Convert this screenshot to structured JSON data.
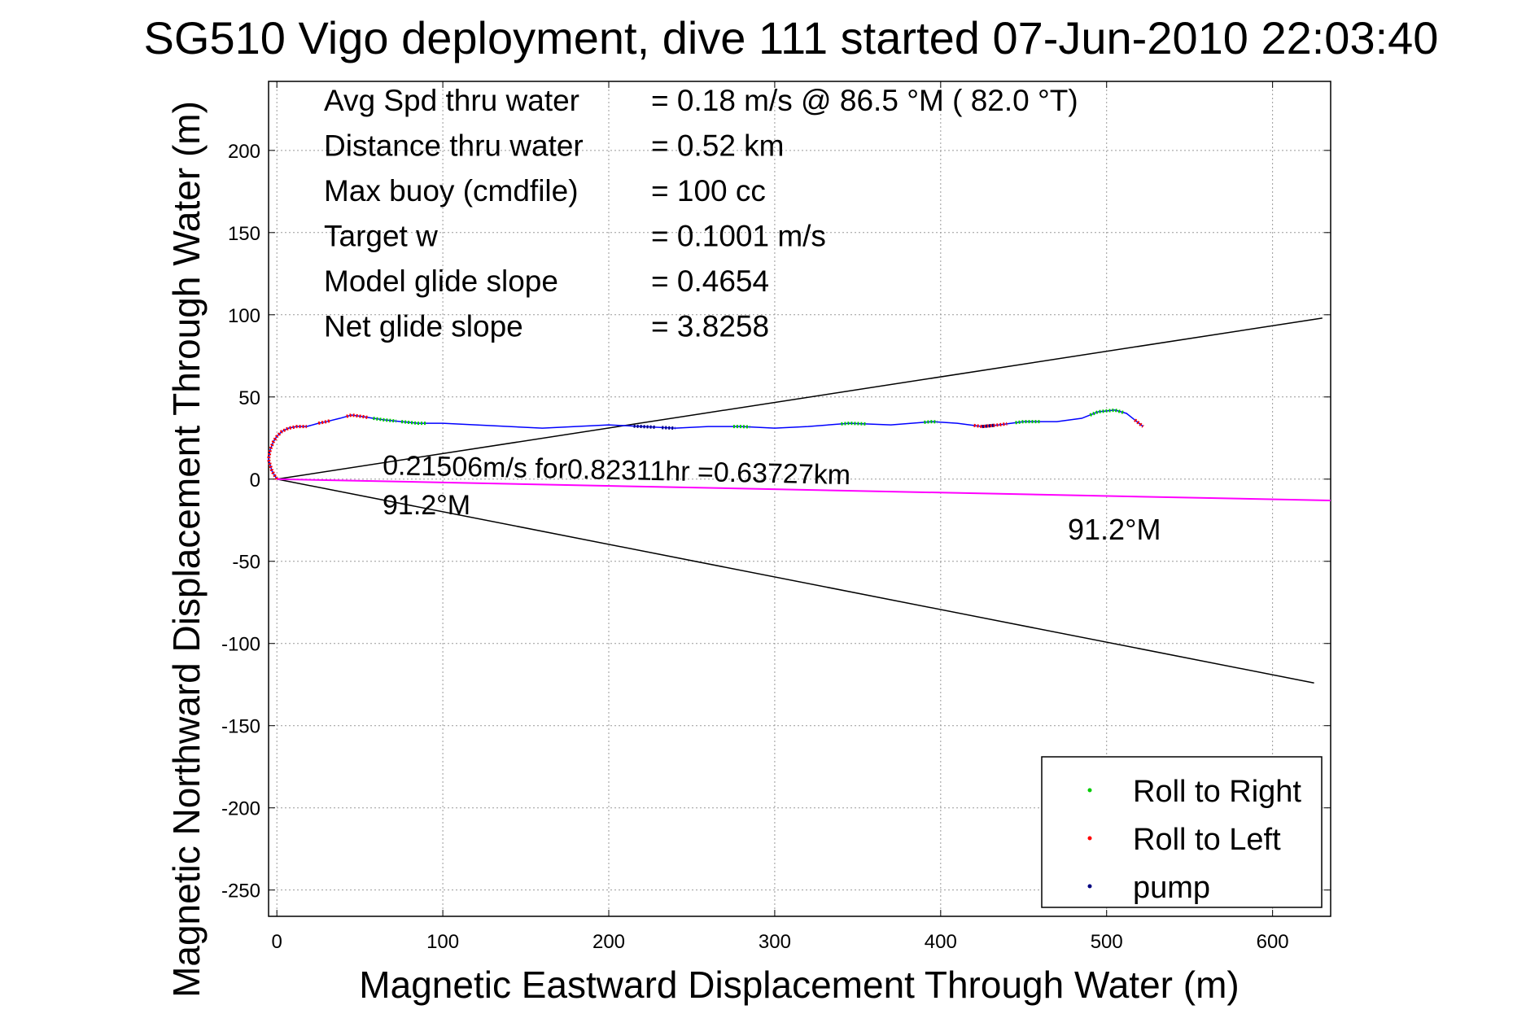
{
  "chart_data": {
    "type": "scatter",
    "title": "SG510 Vigo deployment, dive 111 started 07-Jun-2010 22:03:40",
    "xlabel": "Magnetic Eastward Displacement Through Water (m)",
    "ylabel": "Magnetic Northward Displacement Through Water (m)",
    "xlim": [
      -5,
      635
    ],
    "ylim": [
      -266,
      242
    ],
    "xticks": [
      0,
      100,
      200,
      300,
      400,
      500,
      600
    ],
    "yticks": [
      -250,
      -200,
      -150,
      -100,
      -50,
      0,
      50,
      100,
      150,
      200
    ],
    "grid": true,
    "legend_position": "bottom-right",
    "stats": [
      {
        "label": "Avg Spd thru water",
        "value": "=  0.18 m/s @  86.5 °M ( 82.0 °T)"
      },
      {
        "label": "Distance thru water",
        "value": "=  0.52 km"
      },
      {
        "label": "Max buoy (cmdfile)",
        "value": "= 100 cc"
      },
      {
        "label": "Target w",
        "value": "= 0.1001 m/s"
      },
      {
        "label": "Model glide slope",
        "value": "= 0.4654"
      },
      {
        "label": "Net glide slope",
        "value": "= 3.8258"
      }
    ],
    "annotations": {
      "drift_text": "0.21506m/s for0.82311hr =0.63727km",
      "drift_heading": "91.2°M",
      "end_heading": "91.2°M"
    },
    "legend": [
      {
        "name": "Roll to Right",
        "color": "#00cc00"
      },
      {
        "name": "Roll to Left",
        "color": "#ff0000"
      },
      {
        "name": "pump",
        "color": "#000080"
      }
    ],
    "cone_lines": [
      {
        "x": [
          0,
          630
        ],
        "y": [
          0,
          98
        ]
      },
      {
        "x": [
          0,
          625
        ],
        "y": [
          0,
          -124
        ]
      }
    ],
    "drift_line": {
      "color": "#ff00ff",
      "x": [
        0,
        635
      ],
      "y": [
        0,
        -13
      ]
    },
    "track": {
      "color": "#0000ff",
      "x": [
        0,
        -3,
        -5,
        -4,
        -2,
        0,
        3,
        7,
        12,
        18,
        25,
        30,
        38,
        45,
        52,
        58,
        65,
        75,
        85,
        100,
        120,
        140,
        160,
        180,
        200,
        220,
        240,
        260,
        280,
        300,
        320,
        345,
        370,
        395,
        410,
        425,
        435,
        450,
        470,
        485,
        495,
        505,
        512,
        517,
        522
      ],
      "y": [
        0,
        5,
        12,
        18,
        23,
        26,
        29,
        31,
        32,
        32,
        34,
        35,
        37,
        39,
        38,
        37,
        36,
        35,
        34,
        34,
        33,
        32,
        31,
        32,
        33,
        32,
        31,
        32,
        32,
        31,
        32,
        34,
        33,
        35,
        34,
        32,
        33,
        35,
        35,
        37,
        41,
        42,
        40,
        36,
        32
      ]
    },
    "roll_right_segments": [
      [
        58,
        72
      ],
      [
        75,
        90
      ],
      [
        275,
        285
      ],
      [
        340,
        355
      ],
      [
        390,
        398
      ],
      [
        445,
        460
      ],
      [
        490,
        510
      ]
    ],
    "roll_left_segments": [
      [
        -5,
        12
      ],
      [
        25,
        32
      ],
      [
        42,
        55
      ],
      [
        420,
        440
      ],
      [
        517,
        522
      ]
    ],
    "pump_segments": [
      [
        215,
        228
      ],
      [
        232,
        240
      ],
      [
        425,
        432
      ]
    ]
  }
}
